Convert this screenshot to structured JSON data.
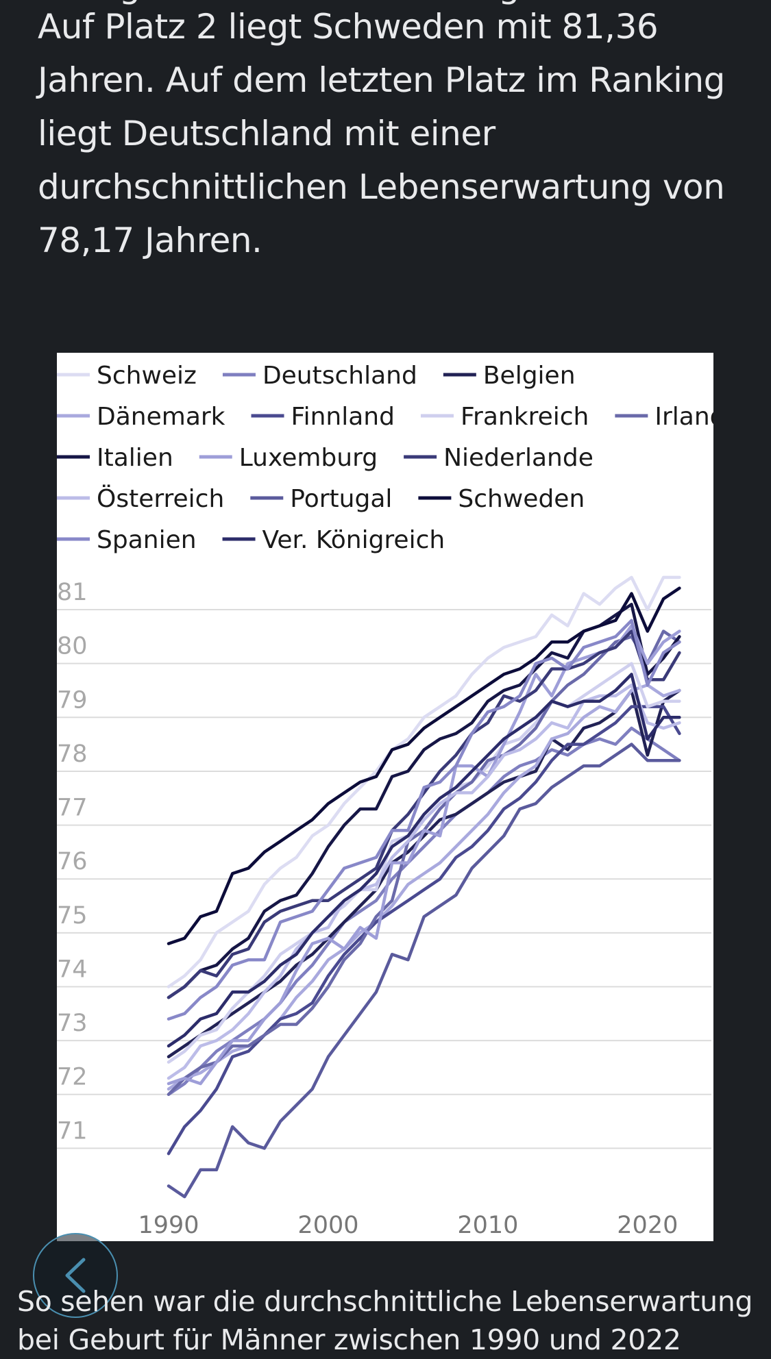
{
  "intro": {
    "partial_line": "... liegt die Lebenserwartung ...",
    "text": "Auf Platz 2 liegt Schweden mit 81,36 Jahren. Auf dem letzten Platz im Ranking liegt Deutschland mit einer durchschnittlichen Lebenserwartung von 78,17 Jahren."
  },
  "outro": {
    "text": "So sehen war die durchschnittliche Lebenserwartung bei Geburt für Männer zwischen 1990 und 2022"
  },
  "back_button": {
    "icon": "chevron-left-icon",
    "color": "#4a8fb0"
  },
  "chart_data": {
    "type": "line",
    "title": "",
    "xlabel": "",
    "ylabel": "",
    "x_ticks": [
      1990,
      2000,
      2010,
      2020
    ],
    "y_ticks": [
      71,
      72,
      73,
      74,
      75,
      76,
      77,
      78,
      79,
      80,
      81
    ],
    "xlim": [
      1983,
      2024
    ],
    "ylim": [
      70,
      81.7
    ],
    "grid": true,
    "legend": "top",
    "x": [
      1990,
      1991,
      1992,
      1993,
      1994,
      1995,
      1996,
      1997,
      1998,
      1999,
      2000,
      2001,
      2002,
      2003,
      2004,
      2005,
      2006,
      2007,
      2008,
      2009,
      2010,
      2011,
      2012,
      2013,
      2014,
      2015,
      2016,
      2017,
      2018,
      2019,
      2020,
      2021,
      2022
    ],
    "series": [
      {
        "name": "Schweiz",
        "color": "#dcdcf2",
        "values": [
          74.0,
          74.2,
          74.5,
          75.0,
          75.2,
          75.4,
          75.9,
          76.2,
          76.4,
          76.8,
          77.0,
          77.4,
          77.7,
          78.0,
          78.4,
          78.6,
          79.0,
          79.2,
          79.4,
          79.8,
          80.1,
          80.3,
          80.4,
          80.5,
          80.9,
          80.7,
          81.3,
          81.1,
          81.4,
          81.6,
          81.0,
          81.6,
          81.6
        ]
      },
      {
        "name": "Deutschland",
        "color": "#7f7fc0",
        "values": [
          72.0,
          72.2,
          72.5,
          72.8,
          73.0,
          73.2,
          73.4,
          73.7,
          74.1,
          74.4,
          74.8,
          75.2,
          75.4,
          75.6,
          76.0,
          76.3,
          76.6,
          76.9,
          77.2,
          77.4,
          77.6,
          77.9,
          78.1,
          78.2,
          78.4,
          78.3,
          78.5,
          78.6,
          78.5,
          78.8,
          78.6,
          78.4,
          78.2
        ]
      },
      {
        "name": "Belgien",
        "color": "#222255",
        "values": [
          72.7,
          72.9,
          73.1,
          73.3,
          73.5,
          73.7,
          73.9,
          74.1,
          74.4,
          74.6,
          74.9,
          75.2,
          75.5,
          75.8,
          76.3,
          76.5,
          76.8,
          77.1,
          77.2,
          77.4,
          77.6,
          77.8,
          77.9,
          78.0,
          78.6,
          78.4,
          78.8,
          78.9,
          79.1,
          79.5,
          78.3,
          79.3,
          79.5
        ]
      },
      {
        "name": "Dänemark",
        "color": "#a9a9de",
        "values": [
          72.1,
          72.3,
          72.4,
          72.6,
          72.8,
          72.9,
          73.1,
          73.4,
          73.8,
          74.1,
          74.5,
          74.7,
          75.0,
          75.2,
          75.5,
          75.9,
          76.1,
          76.3,
          76.6,
          76.9,
          77.2,
          77.6,
          77.9,
          78.1,
          78.6,
          78.7,
          79.0,
          79.2,
          79.1,
          79.5,
          79.6,
          79.4,
          79.5
        ]
      },
      {
        "name": "Finnland",
        "color": "#4a4a90",
        "values": [
          70.9,
          71.4,
          71.7,
          72.1,
          72.7,
          72.8,
          73.1,
          73.4,
          73.5,
          73.7,
          74.2,
          74.6,
          74.9,
          75.2,
          75.4,
          75.6,
          75.8,
          76.0,
          76.4,
          76.6,
          76.9,
          77.3,
          77.5,
          77.8,
          78.2,
          78.5,
          78.5,
          78.7,
          78.9,
          79.2,
          79.2,
          79.2,
          78.7
        ]
      },
      {
        "name": "Frankreich",
        "color": "#cfcfee",
        "values": [
          72.6,
          72.8,
          73.1,
          73.2,
          73.6,
          73.9,
          74.2,
          74.6,
          74.8,
          75.0,
          75.3,
          75.5,
          75.8,
          75.8,
          76.7,
          76.8,
          77.2,
          77.5,
          77.7,
          77.8,
          78.1,
          78.5,
          78.6,
          78.9,
          79.3,
          79.2,
          79.4,
          79.6,
          79.8,
          80.0,
          79.2,
          79.3,
          79.3
        ]
      },
      {
        "name": "Irland",
        "color": "#6a6aaa",
        "values": [
          72.0,
          72.3,
          72.5,
          72.6,
          72.9,
          72.9,
          73.1,
          73.3,
          73.3,
          73.6,
          74.0,
          74.5,
          74.8,
          75.3,
          75.6,
          76.7,
          76.9,
          77.3,
          77.6,
          77.8,
          78.2,
          78.3,
          78.5,
          78.8,
          79.3,
          79.6,
          79.8,
          80.1,
          80.4,
          80.5,
          80.0,
          80.6,
          80.4
        ]
      },
      {
        "name": "Italien",
        "color": "#161646",
        "values": [
          73.8,
          74.0,
          74.3,
          74.4,
          74.7,
          74.9,
          75.4,
          75.6,
          75.7,
          76.1,
          76.6,
          77.0,
          77.3,
          77.3,
          77.9,
          78.0,
          78.4,
          78.6,
          78.7,
          78.9,
          79.3,
          79.5,
          79.6,
          79.9,
          80.2,
          80.1,
          80.6,
          80.7,
          80.9,
          81.1,
          79.8,
          80.1,
          80.5
        ]
      },
      {
        "name": "Luxemburg",
        "color": "#9e9ed8",
        "values": [
          72.2,
          72.3,
          72.2,
          72.6,
          73.0,
          73.0,
          73.4,
          73.7,
          74.3,
          74.8,
          74.9,
          74.7,
          75.1,
          74.9,
          76.3,
          76.3,
          76.9,
          76.8,
          78.1,
          78.1,
          77.9,
          78.5,
          79.1,
          79.8,
          79.4,
          80.0,
          80.1,
          80.2,
          80.3,
          80.7,
          80.0,
          80.4,
          80.6
        ]
      },
      {
        "name": "Niederlande",
        "color": "#3a3a78",
        "values": [
          73.8,
          74.0,
          74.3,
          74.2,
          74.6,
          74.7,
          75.2,
          75.4,
          75.5,
          75.6,
          75.6,
          75.8,
          76.0,
          76.2,
          76.9,
          77.2,
          77.6,
          78.0,
          78.3,
          78.7,
          78.9,
          79.4,
          79.3,
          79.5,
          79.9,
          79.9,
          80.0,
          80.2,
          80.3,
          80.6,
          79.7,
          79.7,
          80.2
        ]
      },
      {
        "name": "Österreich",
        "color": "#bcbce8",
        "values": [
          72.3,
          72.5,
          72.9,
          73.0,
          73.2,
          73.5,
          73.9,
          74.2,
          74.7,
          75.0,
          75.1,
          75.6,
          75.8,
          75.9,
          76.4,
          76.7,
          77.1,
          77.4,
          77.6,
          77.6,
          77.9,
          78.3,
          78.4,
          78.6,
          78.9,
          78.8,
          79.3,
          79.4,
          79.4,
          79.6,
          78.9,
          78.8,
          78.9
        ]
      },
      {
        "name": "Portugal",
        "color": "#5a5a9c",
        "values": [
          70.3,
          70.1,
          70.6,
          70.6,
          71.4,
          71.1,
          71.0,
          71.5,
          71.8,
          72.1,
          72.7,
          73.1,
          73.5,
          73.9,
          74.6,
          74.5,
          75.3,
          75.5,
          75.7,
          76.2,
          76.5,
          76.8,
          77.3,
          77.4,
          77.7,
          77.9,
          78.1,
          78.1,
          78.3,
          78.5,
          78.2,
          78.2,
          78.2
        ]
      },
      {
        "name": "Schweden",
        "color": "#0c0c3a",
        "values": [
          74.8,
          74.9,
          75.3,
          75.4,
          76.1,
          76.2,
          76.5,
          76.7,
          76.9,
          77.1,
          77.4,
          77.6,
          77.8,
          77.9,
          78.4,
          78.5,
          78.8,
          79.0,
          79.2,
          79.4,
          79.6,
          79.8,
          79.9,
          80.1,
          80.4,
          80.4,
          80.6,
          80.7,
          80.8,
          81.3,
          80.6,
          81.2,
          81.4
        ]
      },
      {
        "name": "Spanien",
        "color": "#8888c8",
        "values": [
          73.4,
          73.5,
          73.8,
          74.0,
          74.4,
          74.5,
          74.5,
          75.2,
          75.3,
          75.4,
          75.8,
          76.2,
          76.3,
          76.4,
          76.9,
          76.9,
          77.7,
          77.8,
          78.1,
          78.7,
          79.1,
          79.2,
          79.4,
          80.0,
          80.1,
          79.9,
          80.3,
          80.4,
          80.5,
          80.8,
          79.6,
          80.2,
          80.4
        ]
      },
      {
        "name": "Ver. Königreich",
        "color": "#2c2c6a",
        "values": [
          72.9,
          73.1,
          73.4,
          73.5,
          73.9,
          73.9,
          74.1,
          74.4,
          74.6,
          75.0,
          75.3,
          75.6,
          75.8,
          76.1,
          76.6,
          76.8,
          77.2,
          77.5,
          77.7,
          78.0,
          78.3,
          78.6,
          78.8,
          79.0,
          79.3,
          79.2,
          79.3,
          79.3,
          79.5,
          79.8,
          78.6,
          79.0,
          79.0
        ]
      }
    ]
  }
}
